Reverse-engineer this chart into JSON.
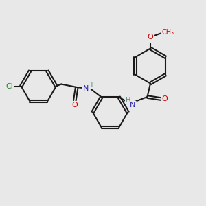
{
  "bg_color": "#e8e8e8",
  "bond_color": "#1a1a1a",
  "atom_colors": {
    "O": "#cc0000",
    "N": "#2222aa",
    "Cl": "#228822",
    "H": "#5a8a8a"
  },
  "figsize": [
    3.0,
    3.0
  ],
  "dpi": 100,
  "lw": 1.5,
  "font_size": 7.5
}
